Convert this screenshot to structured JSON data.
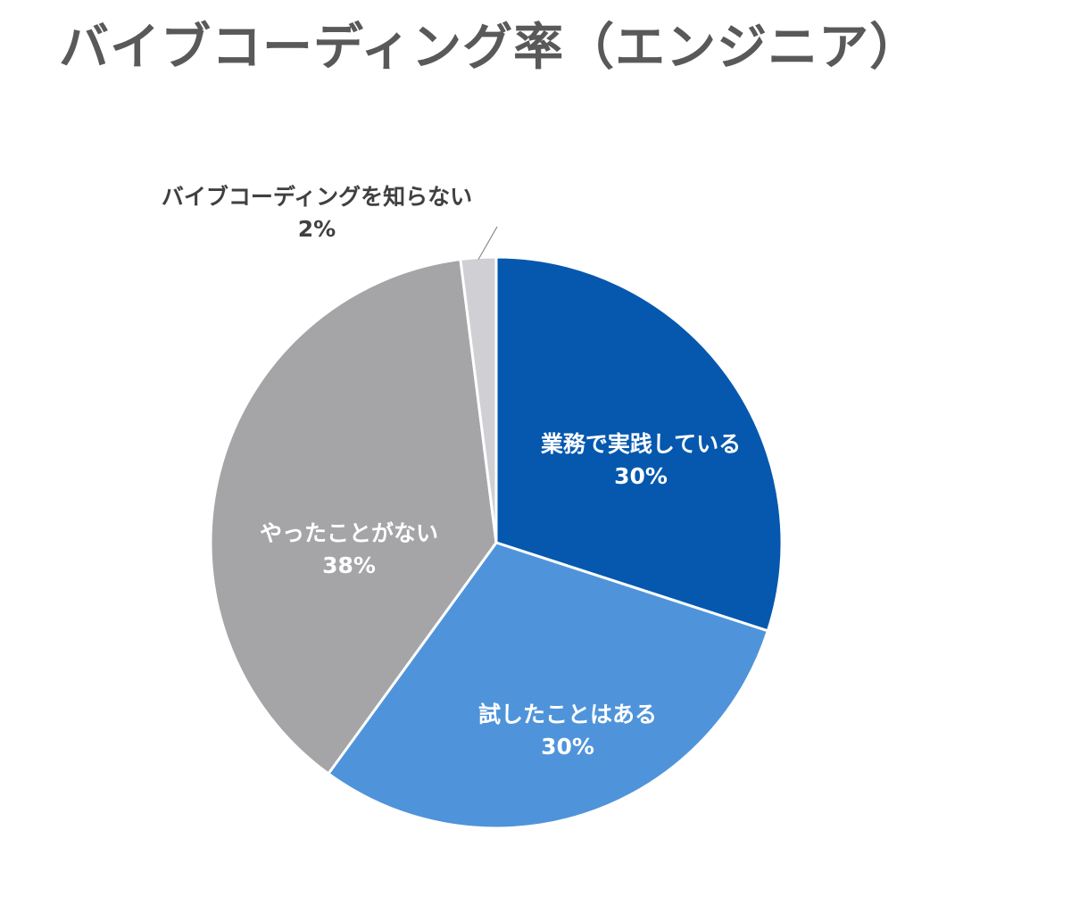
{
  "chart_data": {
    "type": "pie",
    "title": "バイブコーディング率（エンジニア）",
    "start": "top",
    "direction": "clockwise",
    "slices": [
      {
        "label": "業務で実践している",
        "value": 30,
        "value_label": "30%",
        "color": "#0558AE",
        "text_color": "#FFFFFF"
      },
      {
        "label": "試したことはある",
        "value": 30,
        "value_label": "30%",
        "color": "#4F94DA",
        "text_color": "#FFFFFF"
      },
      {
        "label": "やったことがない",
        "value": 38,
        "value_label": "38%",
        "color": "#A5A4A7",
        "text_color": "#FFFFFF"
      },
      {
        "label": "バイブコーディングを知らない",
        "value": 2,
        "value_label": "2%",
        "color": "#D0CFD3",
        "text_color": "#404040"
      }
    ],
    "legend": "none"
  }
}
